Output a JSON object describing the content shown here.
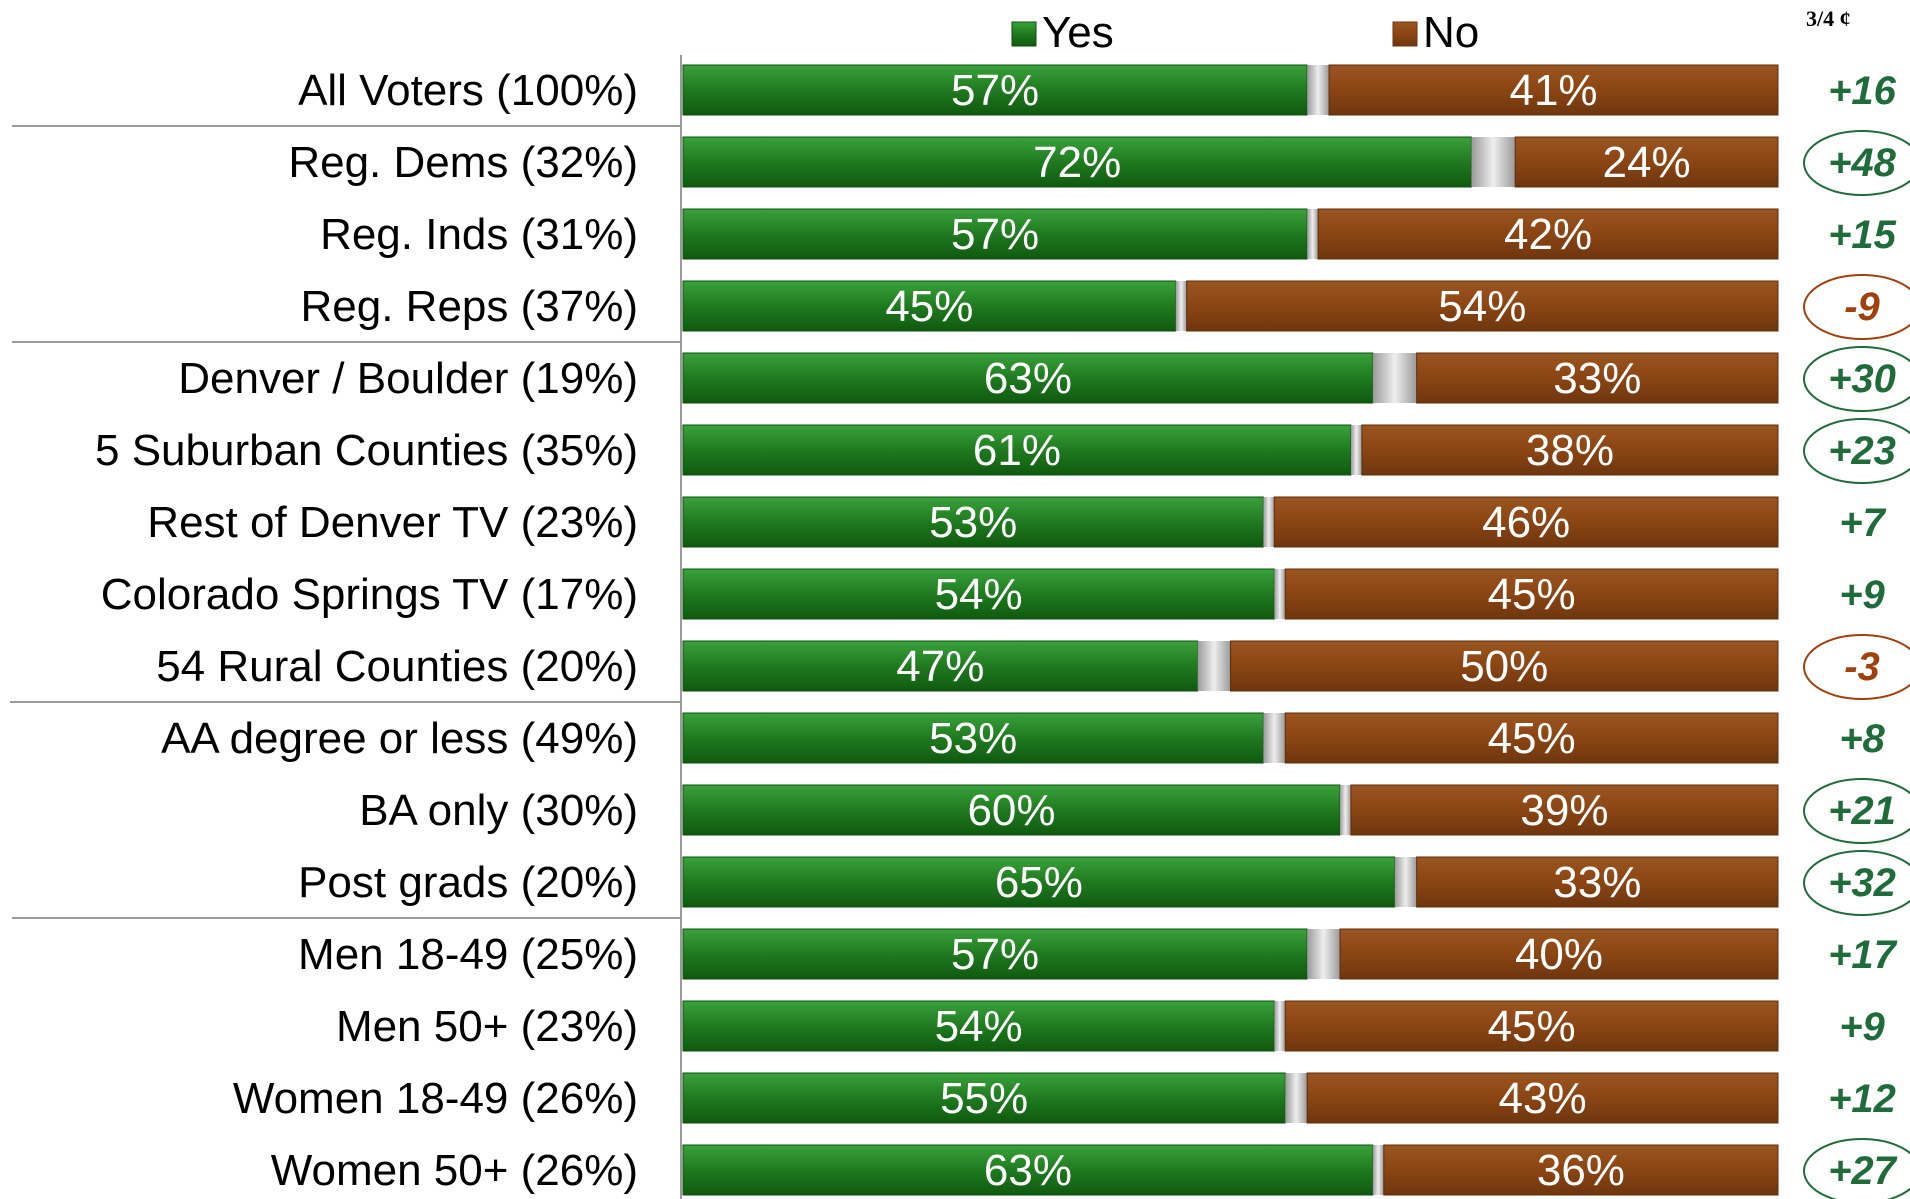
{
  "chart_data": {
    "type": "bar",
    "orientation": "horizontal",
    "stacked": true,
    "corner_note": "3/4 ¢",
    "legend_position": "top",
    "grid": false,
    "xlim": [
      0,
      100
    ],
    "series": [
      {
        "name": "Yes",
        "color": "#1f7a1f"
      },
      {
        "name": "No",
        "color": "#8b4513"
      }
    ],
    "rows": [
      {
        "category": "All Voters (100%)",
        "yes": 57,
        "no": 41,
        "yes_label": "57%",
        "no_label": "41%",
        "net": "+16",
        "net_dir": "pos",
        "circled": false
      },
      {
        "category": "Reg. Dems (32%)",
        "yes": 72,
        "no": 24,
        "yes_label": "72%",
        "no_label": "24%",
        "net": "+48",
        "net_dir": "pos",
        "circled": true
      },
      {
        "category": "Reg. Inds (31%)",
        "yes": 57,
        "no": 42,
        "yes_label": "57%",
        "no_label": "42%",
        "net": "+15",
        "net_dir": "pos",
        "circled": false
      },
      {
        "category": "Reg. Reps (37%)",
        "yes": 45,
        "no": 54,
        "yes_label": "45%",
        "no_label": "54%",
        "net": "-9",
        "net_dir": "neg",
        "circled": true
      },
      {
        "category": "Denver / Boulder (19%)",
        "yes": 63,
        "no": 33,
        "yes_label": "63%",
        "no_label": "33%",
        "net": "+30",
        "net_dir": "pos",
        "circled": true
      },
      {
        "category": "5 Suburban Counties (35%)",
        "yes": 61,
        "no": 38,
        "yes_label": "61%",
        "no_label": "38%",
        "net": "+23",
        "net_dir": "pos",
        "circled": true
      },
      {
        "category": "Rest of Denver TV (23%)",
        "yes": 53,
        "no": 46,
        "yes_label": "53%",
        "no_label": "46%",
        "net": "+7",
        "net_dir": "pos",
        "circled": false
      },
      {
        "category": "Colorado Springs TV (17%)",
        "yes": 54,
        "no": 45,
        "yes_label": "54%",
        "no_label": "45%",
        "net": "+9",
        "net_dir": "pos",
        "circled": false
      },
      {
        "category": "54 Rural Counties (20%)",
        "yes": 47,
        "no": 50,
        "yes_label": "47%",
        "no_label": "50%",
        "net": "-3",
        "net_dir": "neg",
        "circled": true
      },
      {
        "category": "AA degree or less (49%)",
        "yes": 53,
        "no": 45,
        "yes_label": "53%",
        "no_label": "45%",
        "net": "+8",
        "net_dir": "pos",
        "circled": false
      },
      {
        "category": "BA only (30%)",
        "yes": 60,
        "no": 39,
        "yes_label": "60%",
        "no_label": "39%",
        "net": "+21",
        "net_dir": "pos",
        "circled": true
      },
      {
        "category": "Post grads (20%)",
        "yes": 65,
        "no": 33,
        "yes_label": "65%",
        "no_label": "33%",
        "net": "+32",
        "net_dir": "pos",
        "circled": true
      },
      {
        "category": "Men 18-49 (25%)",
        "yes": 57,
        "no": 40,
        "yes_label": "57%",
        "no_label": "40%",
        "net": "+17",
        "net_dir": "pos",
        "circled": false
      },
      {
        "category": "Men 50+ (23%)",
        "yes": 54,
        "no": 45,
        "yes_label": "54%",
        "no_label": "45%",
        "net": "+9",
        "net_dir": "pos",
        "circled": false
      },
      {
        "category": "Women 18-49 (26%)",
        "yes": 55,
        "no": 43,
        "yes_label": "55%",
        "no_label": "43%",
        "net": "+12",
        "net_dir": "pos",
        "circled": false
      },
      {
        "category": "Women 50+ (26%)",
        "yes": 63,
        "no": 36,
        "yes_label": "63%",
        "no_label": "36%",
        "net": "+27",
        "net_dir": "pos",
        "circled": true
      }
    ],
    "group_separators_after": [
      0,
      3,
      8,
      11
    ]
  },
  "colors": {
    "yes": "#1f7a1f",
    "yes_dark": "#0e4f0e",
    "no": "#8b4513",
    "undecided": "#c8c8c8",
    "net_pos": "#1f6b3a",
    "net_neg": "#a0400c",
    "separator": "#9a9a9a"
  }
}
